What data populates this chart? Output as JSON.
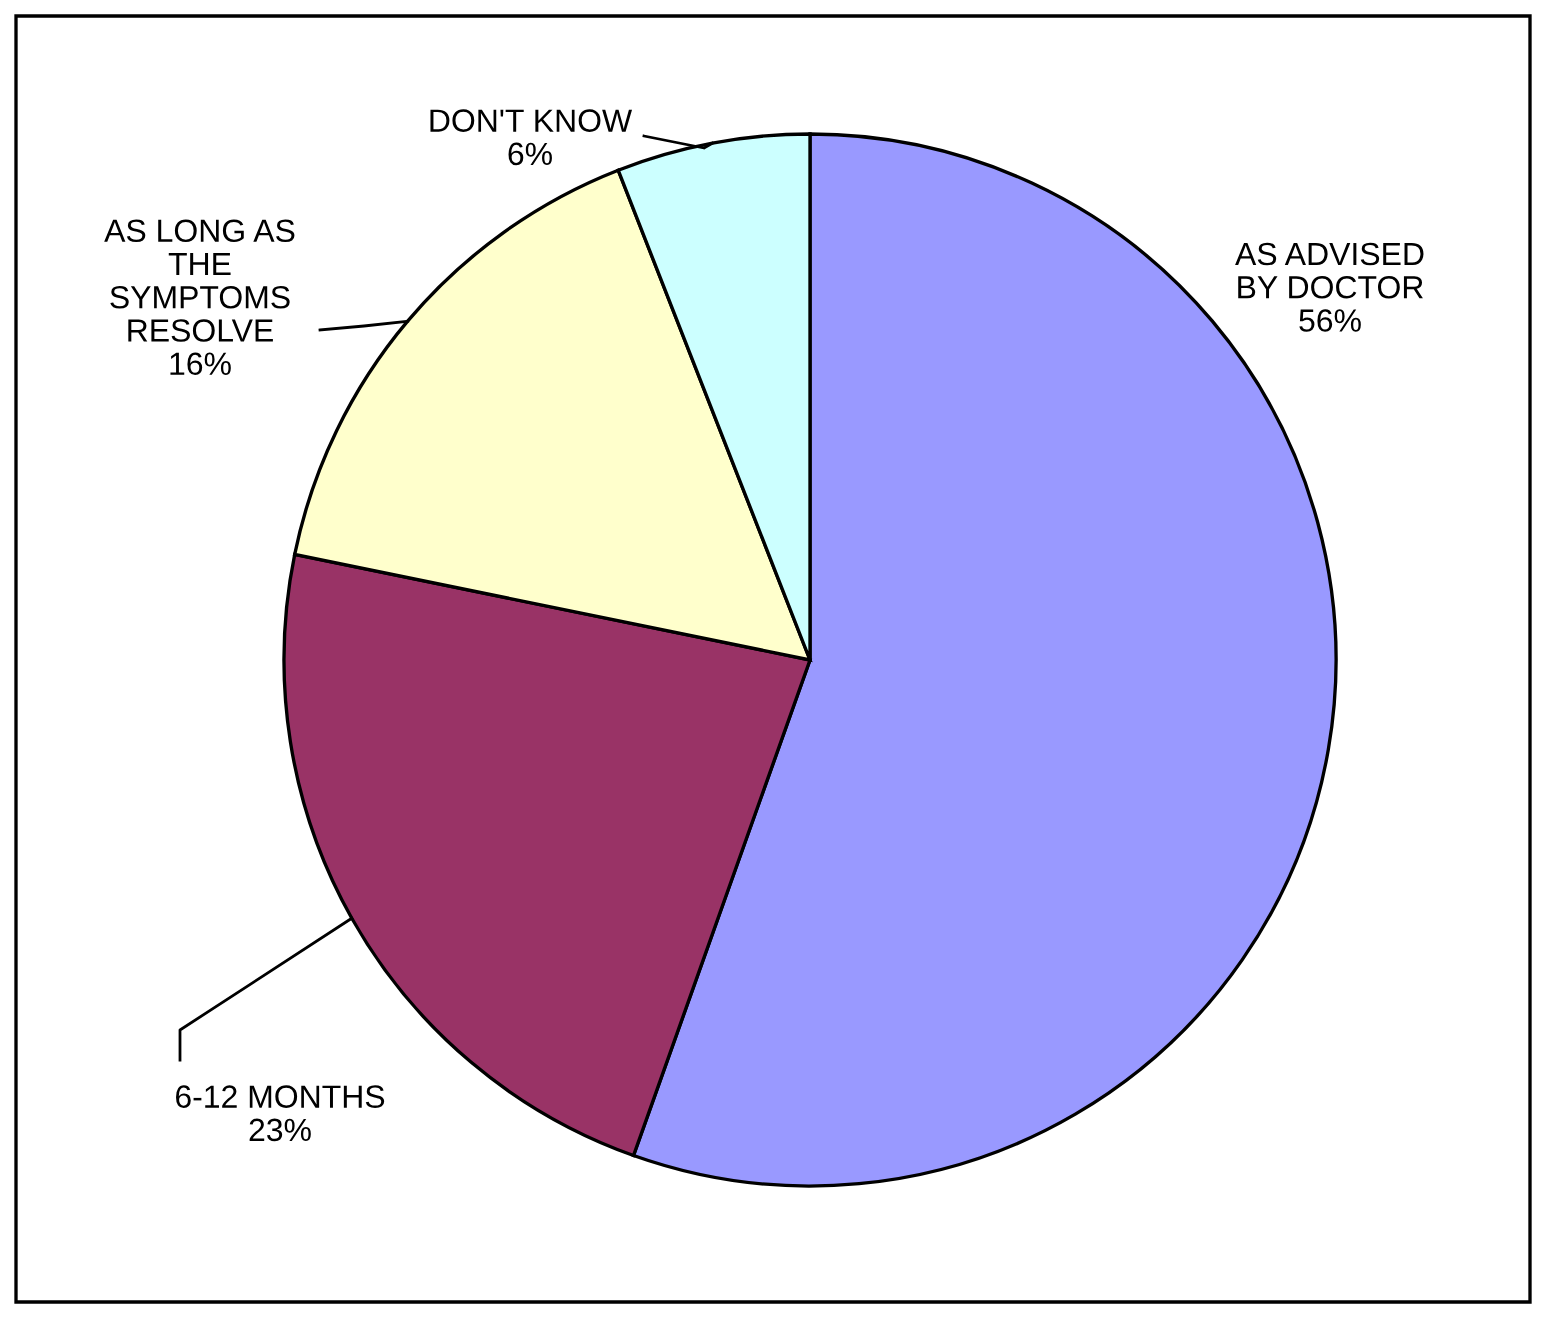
{
  "chart_data": {
    "type": "pie",
    "categories": [
      "AS ADVISED\nBY DOCTOR",
      "6-12 MONTHS",
      "AS LONG AS\nTHE\nSYMPTOMS\nRESOLVE",
      "DON'T KNOW"
    ],
    "values": [
      56,
      23,
      16,
      6
    ],
    "colors": [
      "#9999ff",
      "#993366",
      "#ffffcc",
      "#ccffff"
    ],
    "value_labels": [
      "56%",
      "23%",
      "16%",
      "6%"
    ],
    "legend": false
  }
}
